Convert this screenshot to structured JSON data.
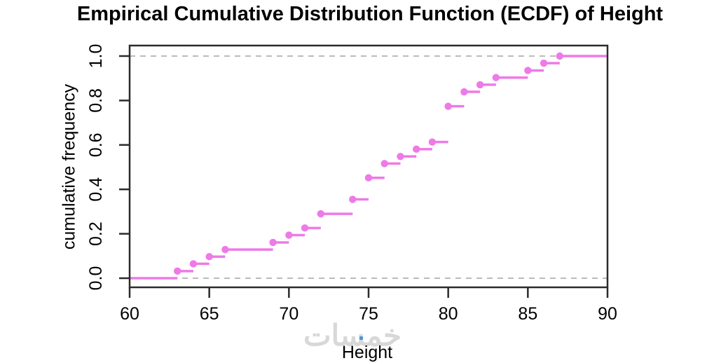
{
  "figure": {
    "background": "#ffffff"
  },
  "chart_data": {
    "type": "line",
    "subtype": "ecdf-step",
    "title": "Empirical Cumulative Distribution Function (ECDF) of Height",
    "xlabel": "Height",
    "ylabel": "cumulative frequency",
    "xlim": [
      60,
      90
    ],
    "ylim": [
      0,
      1
    ],
    "x_ticks": [
      60,
      65,
      70,
      75,
      80,
      85,
      90
    ],
    "y_ticks": [
      {
        "value": 0.0,
        "label": "0.0"
      },
      {
        "value": 0.2,
        "label": "0.2"
      },
      {
        "value": 0.4,
        "label": "0.4"
      },
      {
        "value": 0.6,
        "label": "0.6"
      },
      {
        "value": 0.8,
        "label": "0.8"
      },
      {
        "value": 1.0,
        "label": "1.0"
      }
    ],
    "grid": false,
    "reference_lines_y": [
      0,
      1
    ],
    "sample_size": 31,
    "points": [
      {
        "x": 63,
        "y": 0.032
      },
      {
        "x": 64,
        "y": 0.065
      },
      {
        "x": 65,
        "y": 0.097
      },
      {
        "x": 66,
        "y": 0.129
      },
      {
        "x": 69,
        "y": 0.161
      },
      {
        "x": 70,
        "y": 0.194
      },
      {
        "x": 71,
        "y": 0.226
      },
      {
        "x": 72,
        "y": 0.29
      },
      {
        "x": 74,
        "y": 0.355
      },
      {
        "x": 75,
        "y": 0.452
      },
      {
        "x": 76,
        "y": 0.516
      },
      {
        "x": 77,
        "y": 0.548
      },
      {
        "x": 78,
        "y": 0.581
      },
      {
        "x": 79,
        "y": 0.613
      },
      {
        "x": 80,
        "y": 0.774
      },
      {
        "x": 81,
        "y": 0.839
      },
      {
        "x": 82,
        "y": 0.871
      },
      {
        "x": 83,
        "y": 0.903
      },
      {
        "x": 85,
        "y": 0.935
      },
      {
        "x": 86,
        "y": 0.968
      },
      {
        "x": 87,
        "y": 1.0
      }
    ],
    "colors": {
      "series": "#EE7AE8",
      "reference": "#BBBBBB",
      "axis": "#2b2b2b",
      "text": "#000000"
    }
  },
  "watermark": {
    "text": "خمسات",
    "color": "#D8D8D8",
    "dot_color": "#4A97D8"
  }
}
